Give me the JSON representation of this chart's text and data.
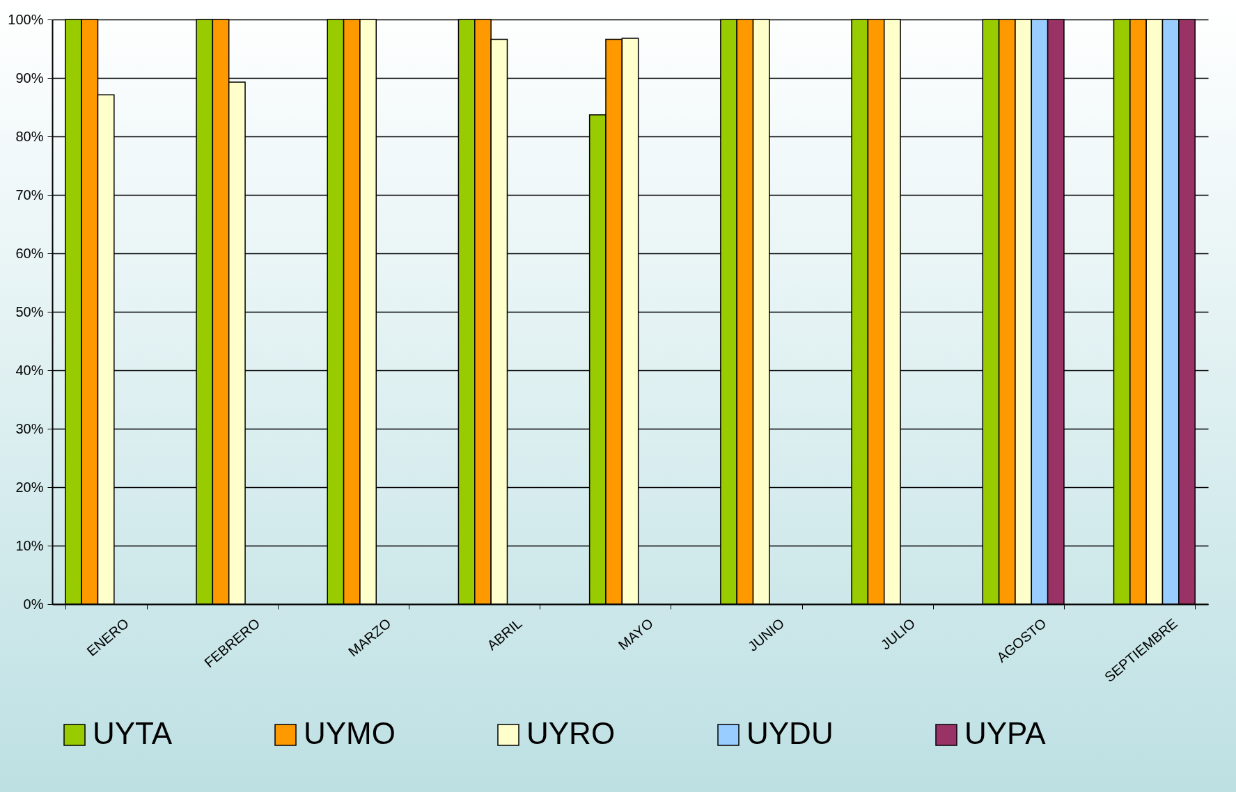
{
  "chart_data": {
    "type": "bar",
    "categories": [
      "ENERO",
      "FEBRERO",
      "MARZO",
      "ABRIL",
      "MAYO",
      "JUNIO",
      "JULIO",
      "AGOSTO",
      "SEPTIEMBRE"
    ],
    "series": [
      {
        "name": "UYTA",
        "color": "#99cc00",
        "values": [
          100,
          100,
          100,
          100,
          83.7,
          100,
          100,
          100,
          100
        ]
      },
      {
        "name": "UYMO",
        "color": "#ff9900",
        "values": [
          100,
          100,
          100,
          100,
          96.6,
          100,
          100,
          100,
          100
        ]
      },
      {
        "name": "UYRO",
        "color": "#ffffcc",
        "values": [
          87.1,
          89.3,
          100,
          96.6,
          96.8,
          100,
          100,
          100,
          100
        ]
      },
      {
        "name": "UYDU",
        "color": "#99ccff",
        "values": [
          null,
          null,
          null,
          null,
          null,
          null,
          null,
          100,
          100
        ]
      },
      {
        "name": "UYPA",
        "color": "#993366",
        "values": [
          null,
          null,
          null,
          null,
          null,
          null,
          null,
          100,
          100
        ]
      }
    ],
    "ylim": [
      0,
      100
    ],
    "yticks": [
      {
        "value": 0,
        "label": "0%"
      },
      {
        "value": 10,
        "label": "10%"
      },
      {
        "value": 20,
        "label": "20%"
      },
      {
        "value": 30,
        "label": "30%"
      },
      {
        "value": 40,
        "label": "40%"
      },
      {
        "value": 50,
        "label": "50%"
      },
      {
        "value": 60,
        "label": "60%"
      },
      {
        "value": 70,
        "label": "70%"
      },
      {
        "value": 80,
        "label": "80%"
      },
      {
        "value": 90,
        "label": "90%"
      },
      {
        "value": 100,
        "label": "100%"
      }
    ],
    "grid": "y",
    "legend": "bottom"
  }
}
